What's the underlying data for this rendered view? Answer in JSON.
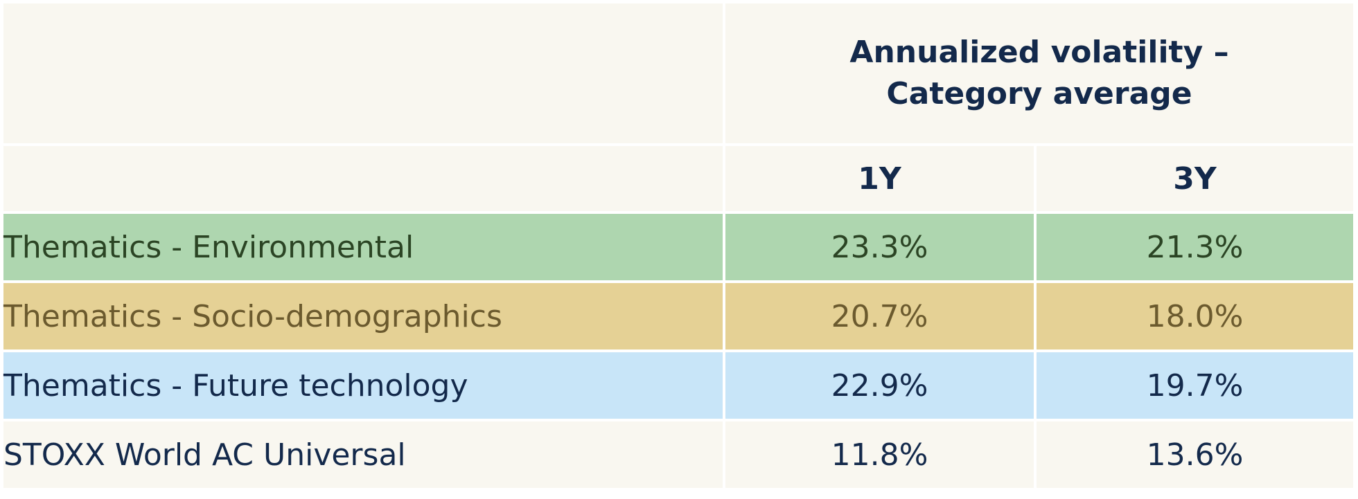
{
  "chart_data": {
    "type": "table",
    "group_header": [
      "Annualized volatility –",
      "Category average"
    ],
    "columns": [
      "1Y",
      "3Y"
    ],
    "rows": [
      {
        "name": "Thematics - Environmental",
        "values": [
          "23.3%",
          "21.3%"
        ],
        "bg": "#aed6af",
        "fg": "#2b4424"
      },
      {
        "name": "Thematics - Socio-demographics",
        "values": [
          "20.7%",
          "18.0%"
        ],
        "bg": "#e5d195",
        "fg": "#6b5a2e"
      },
      {
        "name": "Thematics - Future technology",
        "values": [
          "22.9%",
          "19.7%"
        ],
        "bg": "#c8e5f8",
        "fg": "#13294b"
      },
      {
        "name": "STOXX World AC Universal",
        "values": [
          "11.8%",
          "13.6%"
        ],
        "bg": "#f9f7f0",
        "fg": "#13294b"
      }
    ]
  },
  "colors": {
    "header_bg": "#f9f7f0",
    "text_dark": "#13294b",
    "gridline": "#ffffff"
  }
}
